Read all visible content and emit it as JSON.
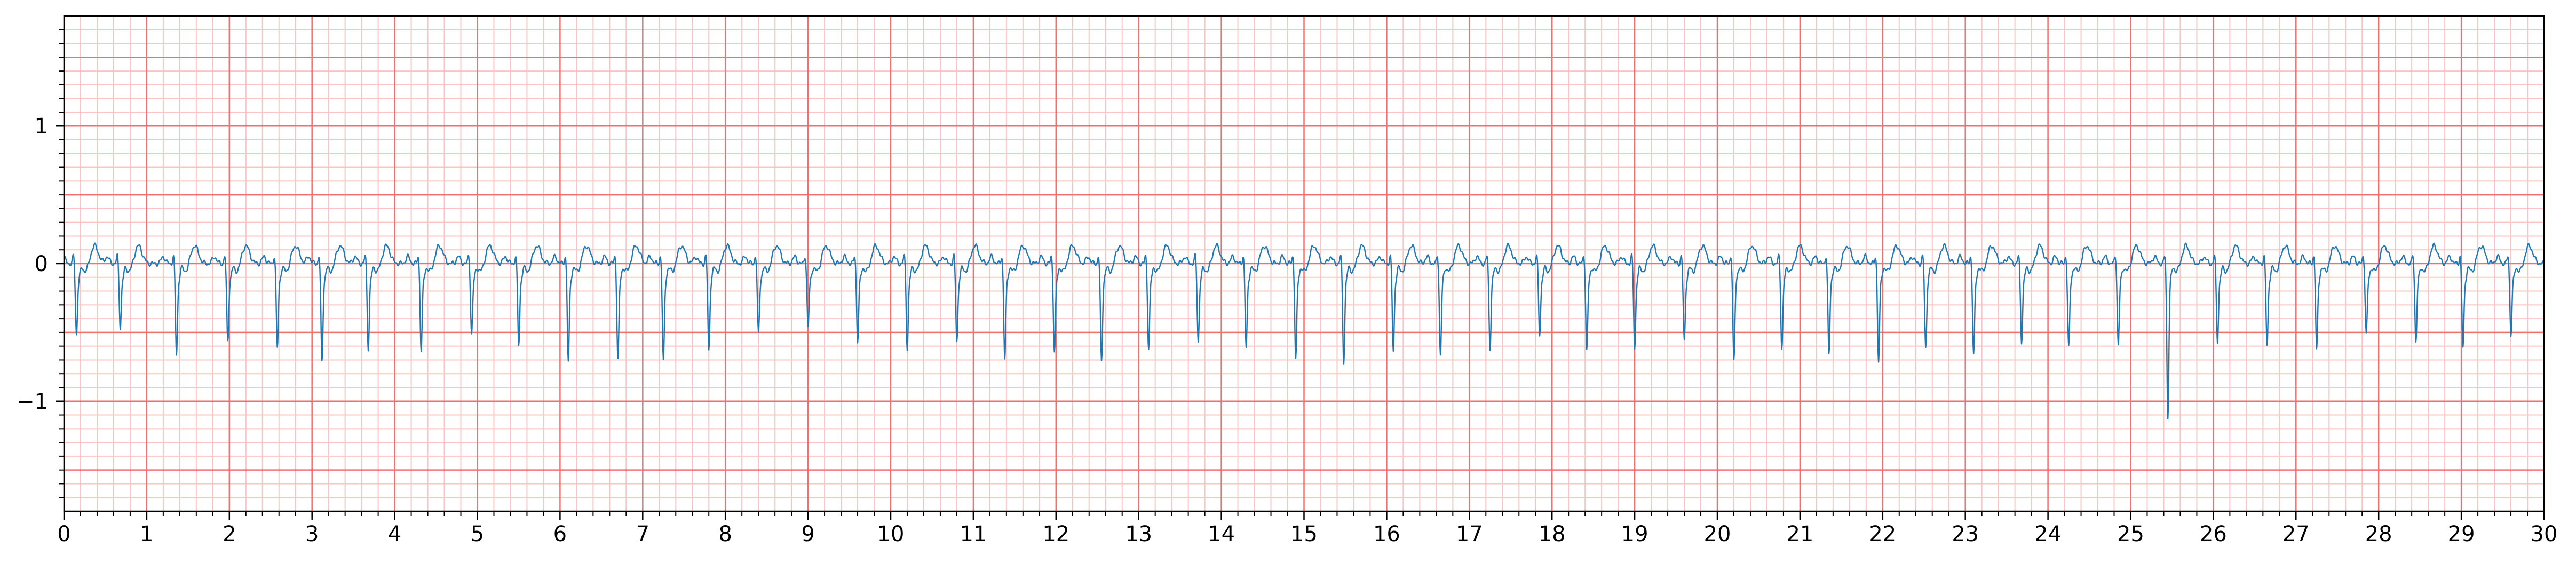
{
  "chart_data": {
    "type": "line",
    "title": "",
    "xlabel": "",
    "ylabel": "",
    "xlim": [
      0,
      30
    ],
    "ylim": [
      -1.8,
      1.8
    ],
    "x_ticks": [
      "0",
      "1",
      "2",
      "3",
      "4",
      "5",
      "6",
      "7",
      "8",
      "9",
      "10",
      "11",
      "12",
      "13",
      "14",
      "15",
      "16",
      "17",
      "18",
      "19",
      "20",
      "21",
      "22",
      "23",
      "24",
      "25",
      "26",
      "27",
      "28",
      "29",
      "30"
    ],
    "y_ticks": [
      {
        "value": 1,
        "label": "1"
      },
      {
        "value": 0,
        "label": "0"
      },
      {
        "value": -1,
        "label": "−1"
      }
    ],
    "grid": {
      "major_step_x": 1,
      "minor_step_x": 0.2,
      "major_step_y": 0.5,
      "minor_step_y": 0.1,
      "major_color": "#f07070",
      "minor_color": "#fbc4c4"
    },
    "line_color": "#1f77b4",
    "series": [
      {
        "beat_times": [
          0.15,
          0.68,
          1.36,
          1.98,
          2.58,
          3.12,
          3.68,
          4.32,
          4.93,
          5.5,
          6.1,
          6.7,
          7.25,
          7.8,
          8.4,
          9.0,
          9.6,
          10.2,
          10.8,
          11.38,
          11.98,
          12.55,
          13.12,
          13.72,
          14.3,
          14.9,
          15.48,
          16.08,
          16.65,
          17.25,
          17.85,
          18.42,
          19.0,
          19.6,
          20.2,
          20.78,
          21.35,
          21.95,
          22.52,
          23.1,
          23.68,
          24.25,
          24.85,
          25.45,
          26.05,
          26.65,
          27.25,
          27.85,
          28.45,
          29.02,
          29.6
        ],
        "q_depths": [
          -0.5,
          -0.45,
          -0.65,
          -0.55,
          -0.6,
          -0.7,
          -0.6,
          -0.62,
          -0.5,
          -0.58,
          -0.7,
          -0.68,
          -0.7,
          -0.62,
          -0.5,
          -0.45,
          -0.55,
          -0.6,
          -0.55,
          -0.68,
          -0.62,
          -0.7,
          -0.6,
          -0.55,
          -0.6,
          -0.68,
          -0.7,
          -0.62,
          -0.65,
          -0.6,
          -0.5,
          -0.62,
          -0.6,
          -0.55,
          -0.7,
          -0.6,
          -0.65,
          -0.7,
          -0.6,
          -0.65,
          -0.55,
          -0.6,
          -0.58,
          -1.1,
          -0.55,
          -0.58,
          -0.62,
          -0.5,
          -0.55,
          -0.6,
          -0.5
        ]
      }
    ]
  }
}
